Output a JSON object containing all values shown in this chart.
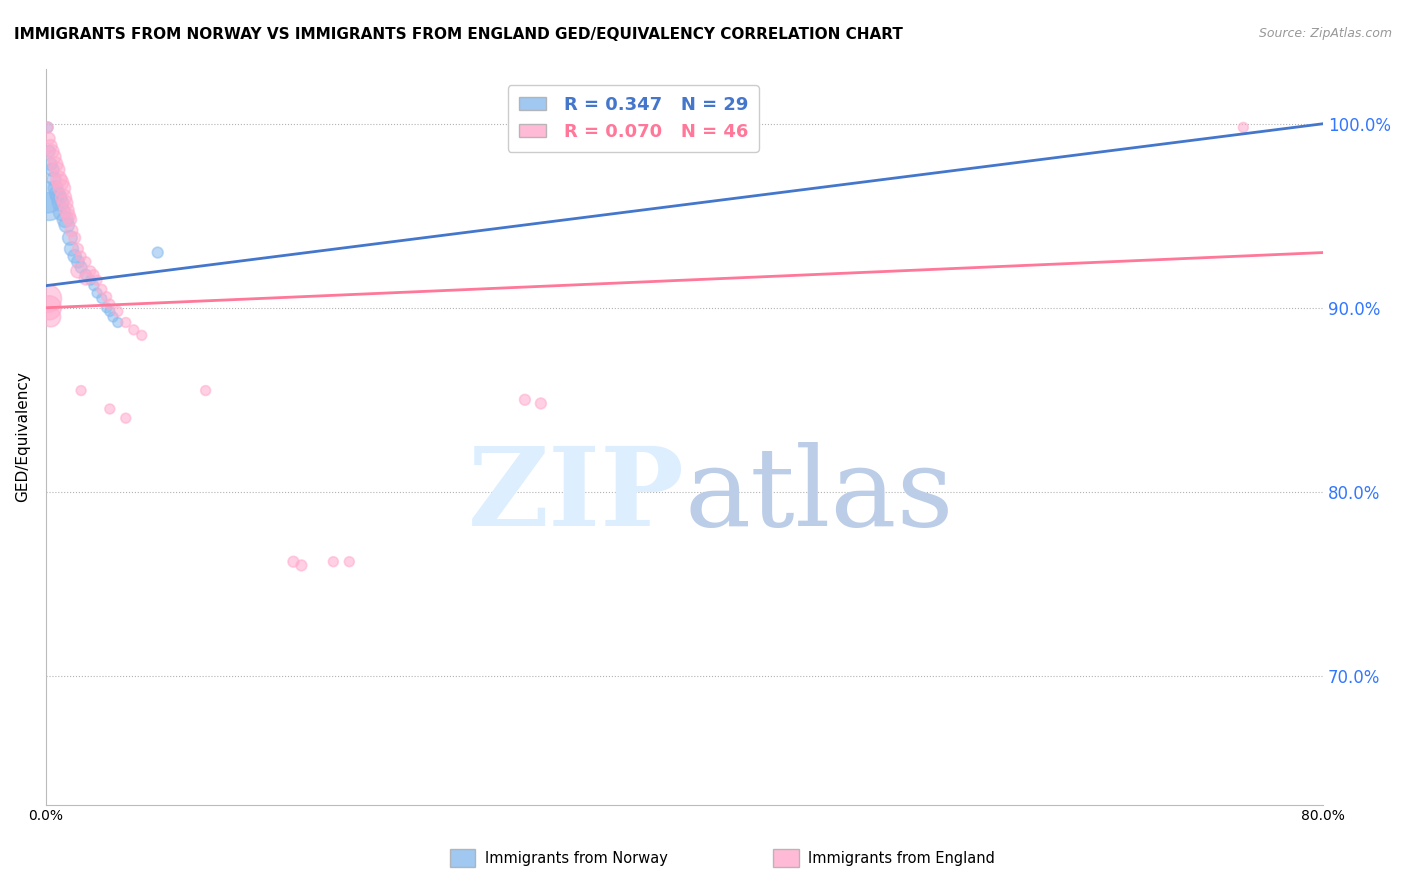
{
  "title": "IMMIGRANTS FROM NORWAY VS IMMIGRANTS FROM ENGLAND GED/EQUIVALENCY CORRELATION CHART",
  "source": "Source: ZipAtlas.com",
  "ylabel": "GED/Equivalency",
  "xlim": [
    0.0,
    0.8
  ],
  "ylim": [
    0.63,
    1.03
  ],
  "yticks": [
    0.7,
    0.8,
    0.9,
    1.0
  ],
  "ytick_labels": [
    "70.0%",
    "80.0%",
    "90.0%",
    "100.0%"
  ],
  "norway_R": 0.347,
  "norway_N": 29,
  "england_R": 0.07,
  "england_N": 46,
  "norway_color": "#88BBEE",
  "england_color": "#FFAACC",
  "norway_line_color": "#4477CC",
  "england_line_color": "#FF7799",
  "norway_x": [
    0.001,
    0.002,
    0.003,
    0.004,
    0.005,
    0.006,
    0.007,
    0.008,
    0.009,
    0.01,
    0.012,
    0.013,
    0.015,
    0.016,
    0.018,
    0.02,
    0.022,
    0.025,
    0.028,
    0.03,
    0.032,
    0.035,
    0.038,
    0.04,
    0.042,
    0.045,
    0.001,
    0.002,
    0.07
  ],
  "norway_y": [
    0.998,
    0.985,
    0.978,
    0.975,
    0.97,
    0.965,
    0.962,
    0.96,
    0.957,
    0.952,
    0.948,
    0.945,
    0.938,
    0.932,
    0.928,
    0.925,
    0.922,
    0.918,
    0.915,
    0.912,
    0.908,
    0.905,
    0.9,
    0.898,
    0.895,
    0.892,
    0.96,
    0.955,
    0.93
  ],
  "norway_sizes": [
    60,
    70,
    80,
    90,
    100,
    110,
    120,
    130,
    140,
    150,
    130,
    120,
    110,
    100,
    90,
    80,
    70,
    60,
    50,
    50,
    50,
    50,
    50,
    50,
    50,
    50,
    500,
    400,
    60
  ],
  "england_x": [
    0.001,
    0.002,
    0.003,
    0.004,
    0.005,
    0.006,
    0.007,
    0.008,
    0.009,
    0.01,
    0.011,
    0.012,
    0.013,
    0.014,
    0.015,
    0.016,
    0.018,
    0.02,
    0.022,
    0.025,
    0.028,
    0.03,
    0.032,
    0.035,
    0.038,
    0.04,
    0.045,
    0.05,
    0.055,
    0.06,
    0.001,
    0.002,
    0.003,
    0.02,
    0.025,
    0.155,
    0.16,
    0.3,
    0.31,
    0.022,
    0.04,
    0.05,
    0.1,
    0.18,
    0.19,
    0.75
  ],
  "england_y": [
    0.998,
    0.992,
    0.988,
    0.985,
    0.982,
    0.978,
    0.975,
    0.97,
    0.968,
    0.965,
    0.96,
    0.957,
    0.953,
    0.95,
    0.948,
    0.942,
    0.938,
    0.932,
    0.928,
    0.925,
    0.92,
    0.918,
    0.915,
    0.91,
    0.906,
    0.902,
    0.898,
    0.892,
    0.888,
    0.885,
    0.905,
    0.9,
    0.895,
    0.92,
    0.916,
    0.762,
    0.76,
    0.85,
    0.848,
    0.855,
    0.845,
    0.84,
    0.855,
    0.762,
    0.762,
    0.998
  ],
  "england_sizes": [
    60,
    70,
    80,
    90,
    100,
    110,
    120,
    130,
    140,
    150,
    130,
    120,
    110,
    100,
    90,
    80,
    70,
    60,
    50,
    50,
    50,
    50,
    50,
    50,
    50,
    50,
    50,
    50,
    50,
    50,
    400,
    300,
    200,
    100,
    90,
    60,
    60,
    60,
    60,
    50,
    50,
    50,
    50,
    50,
    50,
    50
  ]
}
